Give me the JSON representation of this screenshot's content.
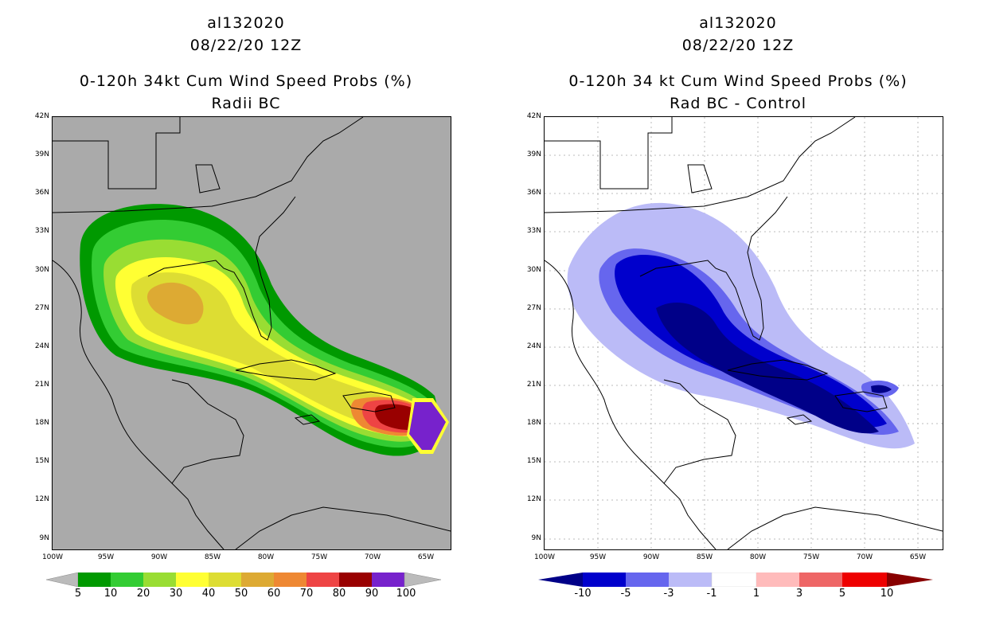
{
  "left": {
    "storm_id": "al132020",
    "datetime": "08/22/20 12Z",
    "title": "0-120h 34kt Cum Wind Speed Probs (%)",
    "subtitle": "Radii BC",
    "colorbar": {
      "labels": [
        "5",
        "10",
        "20",
        "30",
        "40",
        "50",
        "60",
        "70",
        "80",
        "90",
        "100"
      ],
      "colors": [
        "#009900",
        "#33cc33",
        "#99dd33",
        "#ffff33",
        "#dddd33",
        "#ddaa33",
        "#ee8833",
        "#ee4444",
        "#990000",
        "#7722cc"
      ],
      "end_color": "#bbbbbb"
    },
    "colors": {
      "background": "#aaaaaa"
    }
  },
  "right": {
    "storm_id": "al132020",
    "datetime": "08/22/20 12Z",
    "title": "0-120h 34 kt Cum Wind Speed Probs (%)",
    "subtitle": "Rad BC - Control",
    "colorbar": {
      "labels": [
        "-10",
        "-5",
        "-3",
        "-1",
        "1",
        "3",
        "5",
        "10"
      ],
      "colors": [
        "#0000cc",
        "#6666ee",
        "#bbbbf7",
        "#ffffff",
        "#ffbbbb",
        "#ee6666",
        "#ee0000"
      ],
      "left_color": "#000088",
      "right_color": "#880000"
    }
  },
  "axes": {
    "y_ticks": [
      "42N",
      "39N",
      "36N",
      "33N",
      "30N",
      "27N",
      "24N",
      "21N",
      "18N",
      "15N",
      "12N",
      "9N"
    ],
    "x_ticks": [
      "100W",
      "95W",
      "90W",
      "85W",
      "80W",
      "75W",
      "70W",
      "65W"
    ],
    "lon_range": [
      -100,
      -63
    ],
    "lat_range": [
      8,
      42
    ]
  }
}
